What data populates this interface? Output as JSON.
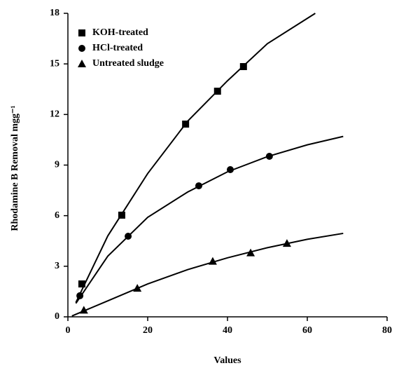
{
  "chart_data": {
    "type": "scatter",
    "xlabel": "Values",
    "ylabel": "Rhodamine B Removal mgg⁻¹",
    "xlim": [
      0,
      80
    ],
    "xticks": [
      0,
      20,
      40,
      60,
      80
    ],
    "ylim": [
      0,
      18
    ],
    "yticks": [
      0,
      3,
      6,
      9,
      12,
      15,
      18
    ],
    "legend": "upper left",
    "series": [
      {
        "name": "KOH-treated",
        "color": "#000000",
        "marker": "square",
        "x": [
          3.5,
          13.5,
          29.5,
          37.5,
          44
        ],
        "values": [
          1.95,
          6.03,
          11.43,
          13.38,
          14.84
        ],
        "fit_x": [
          2,
          10,
          20,
          30,
          40,
          50,
          62
        ],
        "fit_values": [
          0.85,
          4.8,
          8.5,
          11.6,
          14.0,
          16.2,
          18
        ]
      },
      {
        "name": "HCl-treated",
        "color": "#000000",
        "marker": "circle",
        "x": [
          3,
          15.1,
          32.8,
          40.7,
          50.5
        ],
        "values": [
          1.25,
          4.78,
          7.77,
          8.73,
          9.52
        ],
        "fit_x": [
          2,
          10,
          20,
          30,
          40,
          50,
          60,
          69
        ],
        "fit_values": [
          0.8,
          3.6,
          5.9,
          7.4,
          8.6,
          9.5,
          10.2,
          10.7
        ]
      },
      {
        "name": "Untreated sludge",
        "color": "#000000",
        "marker": "triangle",
        "x": [
          4,
          17.4,
          36.3,
          45.8,
          54.9
        ],
        "values": [
          0.4,
          1.7,
          3.3,
          3.8,
          4.36
        ],
        "fit_x": [
          1,
          10,
          20,
          30,
          40,
          50,
          60,
          69
        ],
        "fit_values": [
          0.05,
          0.95,
          1.95,
          2.8,
          3.5,
          4.1,
          4.6,
          4.95
        ]
      }
    ]
  }
}
